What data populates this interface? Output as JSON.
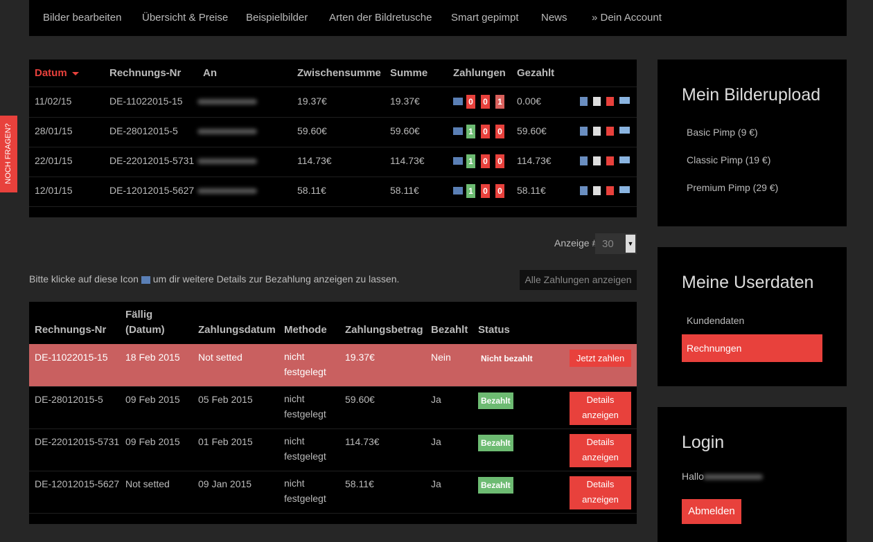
{
  "nav": [
    "Bilder bearbeiten",
    "Übersicht & Preise",
    "Beispielbilder",
    "Arten der Bildretusche",
    "Smart gepimpt",
    "News",
    "» Dein Account"
  ],
  "side_tab": "NOCH FRAGEN?",
  "invoices": {
    "headers": [
      "Datum",
      "Rechnungs-Nr",
      "An",
      "Zwischensumme",
      "Summe",
      "Zahlungen",
      "Gezahlt"
    ],
    "rows": [
      {
        "datum": "11/02/15",
        "nr": "DE-11022015-15",
        "zwischensumme": "19.37€",
        "summe": "19.37€",
        "zahlungen": [
          {
            "text": "0",
            "color": "#e8413c"
          },
          {
            "text": "0",
            "color": "#e8413c"
          },
          {
            "text": "1",
            "color": "#d9605c"
          }
        ],
        "gezahlt": "0.00€"
      },
      {
        "datum": "28/01/15",
        "nr": "DE-28012015-5",
        "zwischensumme": "59.60€",
        "summe": "59.60€",
        "zahlungen": [
          {
            "text": "1",
            "color": "#6dbb72"
          },
          {
            "text": "0",
            "color": "#e8413c"
          },
          {
            "text": "0",
            "color": "#e8413c"
          }
        ],
        "gezahlt": "59.60€"
      },
      {
        "datum": "22/01/15",
        "nr": "DE-22012015-5731",
        "zwischensumme": "114.73€",
        "summe": "114.73€",
        "zahlungen": [
          {
            "text": "1",
            "color": "#6dbb72"
          },
          {
            "text": "0",
            "color": "#e8413c"
          },
          {
            "text": "0",
            "color": "#e8413c"
          }
        ],
        "gezahlt": "114.73€"
      },
      {
        "datum": "12/01/15",
        "nr": "DE-12012015-5627",
        "zwischensumme": "58.11€",
        "summe": "58.11€",
        "zahlungen": [
          {
            "text": "1",
            "color": "#6dbb72"
          },
          {
            "text": "0",
            "color": "#e8413c"
          },
          {
            "text": "0",
            "color": "#e8413c"
          }
        ],
        "gezahlt": "58.11€"
      }
    ]
  },
  "display": {
    "label": "Anzeige #",
    "value": "30"
  },
  "hint": {
    "before": "Bitte klicke auf diese Icon",
    "after": "um dir weitere Details zur Bezahlung anzeigen zu lassen."
  },
  "all_payments_button": "Alle Zahlungen anzeigen",
  "payments": {
    "headers": [
      "Rechnungs-Nr",
      "Fällig (Datum)",
      "Zahlungsdatum",
      "Methode",
      "Zahlungsbetrag",
      "Bezahlt",
      "Status"
    ],
    "rows": [
      {
        "nr": "DE-11022015-15",
        "faellig": "18 Feb 2015",
        "zahlungsdatum": "Not setted",
        "methode": "nicht festgelegt",
        "betrag": "19.37€",
        "bezahlt": "Nein",
        "status": "Nicht bezahlt",
        "action": "Jetzt zahlen"
      },
      {
        "nr": "DE-28012015-5",
        "faellig": "09 Feb 2015",
        "zahlungsdatum": "05 Feb 2015",
        "methode": "nicht festgelegt",
        "betrag": "59.60€",
        "bezahlt": "Ja",
        "status": "Bezahlt",
        "action": "Details anzeigen"
      },
      {
        "nr": "DE-22012015-5731",
        "faellig": "09 Feb 2015",
        "zahlungsdatum": "01 Feb 2015",
        "methode": "nicht festgelegt",
        "betrag": "114.73€",
        "bezahlt": "Ja",
        "status": "Bezahlt",
        "action": "Details anzeigen"
      },
      {
        "nr": "DE-12012015-5627",
        "faellig": "Not setted",
        "zahlungsdatum": "09 Jan 2015",
        "methode": "nicht festgelegt",
        "betrag": "58.11€",
        "bezahlt": "Ja",
        "status": "Bezahlt",
        "action": "Details anzeigen"
      }
    ]
  },
  "sidebar": {
    "upload": {
      "title": "Mein Bilderupload",
      "links": [
        "Basic Pimp (9 €)",
        "Classic Pimp (19 €)",
        "Premium Pimp (29 €)"
      ]
    },
    "userdata": {
      "title": "Meine Userdaten",
      "links": [
        "Kundendaten",
        "Rechnungen"
      ]
    },
    "login": {
      "title": "Login",
      "greeting": "Hallo",
      "button": "Abmelden"
    }
  }
}
